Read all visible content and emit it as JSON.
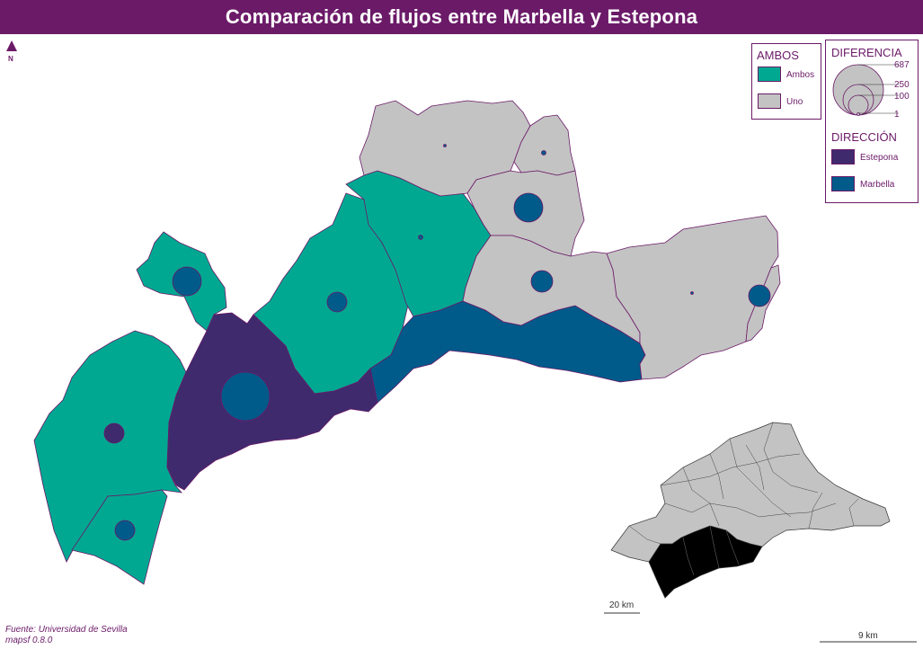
{
  "title": "Comparación de flujos entre Marbella y Estepona",
  "north_label": "N",
  "colors": {
    "title_bg": "#6b1a68",
    "ambos": "#00a892",
    "uno": "#c3c3c3",
    "estepona": "#3f2a6e",
    "marbella": "#005a8a",
    "border": "#6b1a68"
  },
  "legend_ambos": {
    "title": "AMBOS",
    "items": [
      "Ambos",
      "Uno"
    ]
  },
  "legend_diferencia": {
    "title": "DIFERENCIA",
    "values": [
      "687",
      "250",
      "100",
      "1"
    ]
  },
  "legend_direccion": {
    "title": "DIRECCIÓN",
    "items": [
      "Estepona",
      "Marbella"
    ]
  },
  "inset_scale": "20 km",
  "main_scale": "9 km",
  "source": {
    "line1": "Fuente: Universidad de Sevilla",
    "line2": "mapsf 0.8.0"
  },
  "icons": {
    "north": "north-arrow-icon"
  }
}
